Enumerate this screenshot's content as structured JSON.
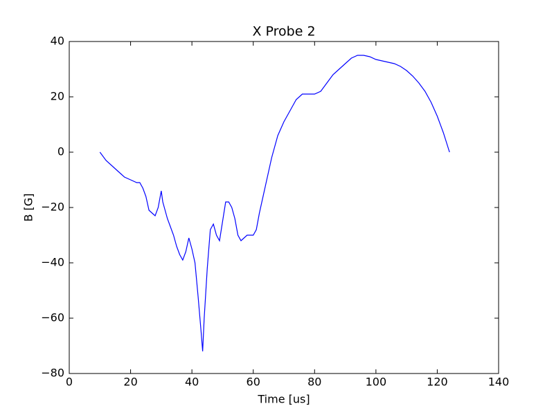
{
  "chart_data": {
    "type": "line",
    "title": "X Probe 2",
    "xlabel": "Time [us]",
    "ylabel": "B [G]",
    "color": "#0000ff",
    "x": [
      10,
      12,
      15,
      17,
      18,
      20,
      22,
      23,
      24,
      25,
      26,
      27,
      28,
      29,
      30,
      30.5,
      31,
      32,
      33,
      34,
      35,
      36,
      37,
      38,
      39,
      40,
      41,
      42,
      43,
      43.5,
      44,
      45,
      46,
      47,
      48,
      49,
      50,
      51,
      52,
      53,
      54,
      55,
      56,
      57,
      58,
      60,
      61,
      62,
      64,
      66,
      68,
      70,
      72,
      74,
      76,
      78,
      80,
      82,
      84,
      86,
      88,
      90,
      92,
      94,
      96,
      98,
      100,
      102,
      104,
      106,
      108,
      110,
      112,
      114,
      116,
      118,
      120,
      122,
      124
    ],
    "values": [
      0,
      -3,
      -6,
      -8,
      -9,
      -10,
      -11,
      -11,
      -13,
      -16,
      -21,
      -22,
      -23,
      -20,
      -14,
      -18,
      -20,
      -24,
      -27,
      -30,
      -34,
      -37,
      -39,
      -36,
      -31,
      -35,
      -40,
      -52,
      -65,
      -72,
      -60,
      -42,
      -28,
      -26,
      -30,
      -32,
      -25,
      -18,
      -18,
      -20,
      -24,
      -30,
      -32,
      -31,
      -30,
      -30,
      -28,
      -22,
      -12,
      -2,
      6,
      11,
      15,
      19,
      21,
      21,
      21,
      22,
      25,
      28,
      30,
      32,
      34,
      35,
      35,
      34.5,
      33.5,
      33,
      32.5,
      32,
      31,
      29.5,
      27.5,
      25,
      22,
      18,
      13,
      7,
      0
    ],
    "xlim": [
      0,
      140
    ],
    "xticks": [
      0,
      20,
      40,
      60,
      80,
      100,
      120,
      140
    ],
    "ylim": [
      -80,
      40
    ],
    "yticks": [
      {
        "value": -80,
        "label": "−80"
      },
      {
        "value": -60,
        "label": "−60"
      },
      {
        "value": -40,
        "label": "−40"
      },
      {
        "value": -20,
        "label": "−20"
      },
      0,
      20,
      40
    ]
  }
}
